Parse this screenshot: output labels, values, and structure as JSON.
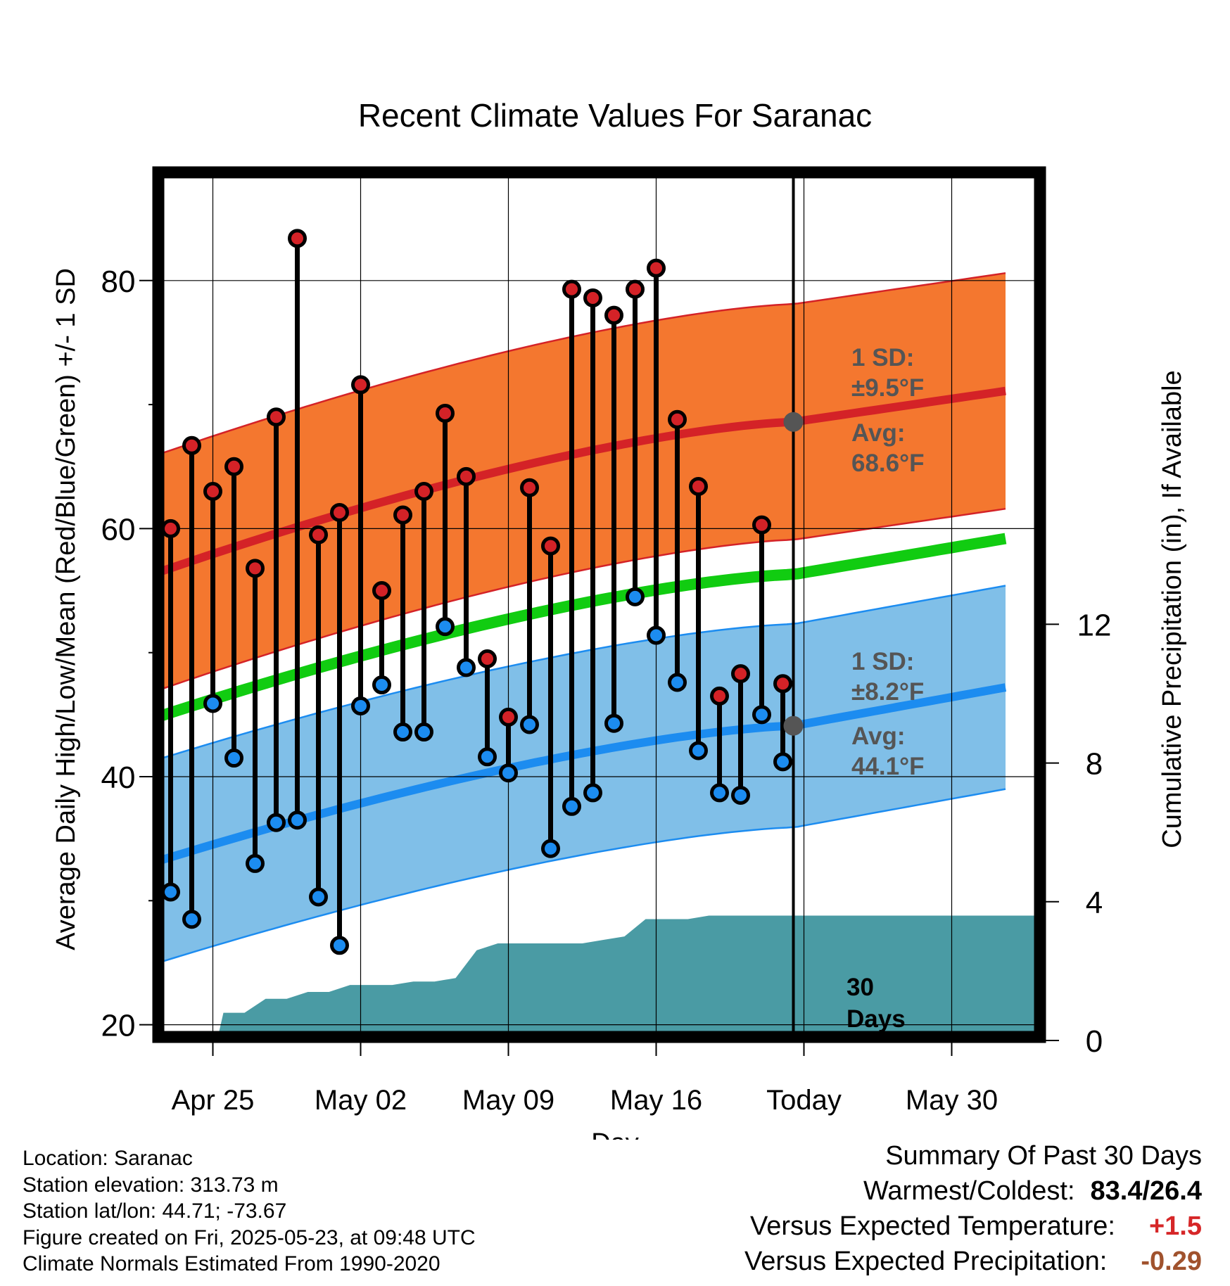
{
  "chart_data": {
    "type": "line",
    "title": "Recent Climate Values For Saranac",
    "xlabel": "Day",
    "ylabel_left": "Average Daily High/Low/Mean (Red/Blue/Green) +/- 1 SD",
    "ylabel_right": "Cumulative Precipitation (in), If Available",
    "x_ticks": [
      "Apr 25",
      "May 02",
      "May 09",
      "May 16",
      "Today",
      "May 30"
    ],
    "y_ticks_left": [
      "20",
      "40",
      "60",
      "80"
    ],
    "y_ticks_right": [
      "0",
      "4",
      "8",
      "12"
    ],
    "ylim_left": [
      19,
      89
    ],
    "ylim_right": [
      0,
      22
    ],
    "days": [
      "Apr 23",
      "Apr 24",
      "Apr 25",
      "Apr 26",
      "Apr 27",
      "Apr 28",
      "Apr 29",
      "Apr 30",
      "May 01",
      "May 02",
      "May 03",
      "May 04",
      "May 05",
      "May 06",
      "May 07",
      "May 08",
      "May 09",
      "May 10",
      "May 11",
      "May 12",
      "May 13",
      "May 14",
      "May 15",
      "May 16",
      "May 17",
      "May 18",
      "May 19",
      "May 20",
      "May 21",
      "May 22"
    ],
    "daily_high": [
      60.0,
      66.7,
      63.0,
      65.0,
      56.8,
      69.0,
      83.4,
      59.5,
      61.3,
      71.6,
      55.0,
      61.1,
      63.0,
      69.3,
      64.2,
      49.5,
      44.8,
      63.3,
      58.6,
      79.3,
      78.6,
      77.2,
      79.3,
      81.0,
      68.8,
      63.4,
      46.5,
      48.3,
      60.3,
      47.5
    ],
    "daily_low": [
      30.7,
      28.5,
      45.9,
      41.5,
      33.0,
      36.3,
      36.5,
      30.3,
      26.4,
      45.7,
      47.4,
      43.6,
      43.6,
      52.1,
      48.8,
      41.6,
      40.3,
      44.2,
      34.2,
      37.6,
      38.7,
      44.3,
      54.5,
      51.4,
      47.6,
      42.1,
      38.7,
      38.5,
      45.0,
      41.2
    ],
    "normal_high_mean": {
      "Apr 22": 55.7,
      "Today": 68.6,
      "Jun 01": 71.1
    },
    "normal_high_sd": 9.5,
    "normal_low_mean": {
      "Apr 22": 32.5,
      "Today": 44.1,
      "Jun 01": 47.2
    },
    "normal_low_sd": 8.2,
    "normal_mean": {
      "Apr 22": 44.1,
      "Today": 56.3,
      "Jun 01": 59.2
    },
    "cumulative_precip": [
      0.0,
      0.2,
      0.8,
      0.8,
      1.2,
      1.2,
      1.4,
      1.4,
      1.6,
      1.6,
      1.6,
      1.7,
      1.7,
      1.8,
      2.6,
      2.8,
      2.8,
      2.8,
      2.8,
      2.8,
      2.9,
      3.0,
      3.5,
      3.5,
      3.5,
      3.6,
      3.6,
      3.6,
      3.6,
      3.6
    ],
    "annotations": {
      "high_sd_line1": "1 SD:",
      "high_sd_line2": "±9.5°F",
      "high_avg_line1": "Avg:",
      "high_avg_line2": "68.6°F",
      "low_sd_line1": "1 SD:",
      "low_sd_line2": "±8.2°F",
      "low_avg_line1": "Avg:",
      "low_avg_line2": "44.1°F",
      "window_line1": "30",
      "window_line2": "Days"
    },
    "colors": {
      "high_band": "#f4772f",
      "high_mean": "#d42227",
      "low_band": "#80bfe8",
      "low_mean": "#1c8cf0",
      "normal_mean": "#11cc11",
      "precip": "#4a9ba4",
      "high_dot": "#d42227",
      "low_dot": "#1c8cf0",
      "annotation": "#555555"
    }
  },
  "footer": {
    "location": "Location: Saranac",
    "elevation": "Station elevation: 313.73 m",
    "latlon": "Station lat/lon: 44.71; -73.67",
    "created": "Figure created on Fri, 2025-05-23, at 09:48 UTC",
    "normals": "Climate Normals Estimated From 1990-2020"
  },
  "summary": {
    "heading": "Summary Of Past 30 Days",
    "warmest_coldest_label": "Warmest/Coldest:",
    "warmest_coldest_value": "83.4/26.4",
    "temp_label": "Versus Expected Temperature:",
    "temp_value": "+1.5",
    "precip_label": "Versus Expected Precipitation:",
    "precip_value": "-0.29"
  }
}
